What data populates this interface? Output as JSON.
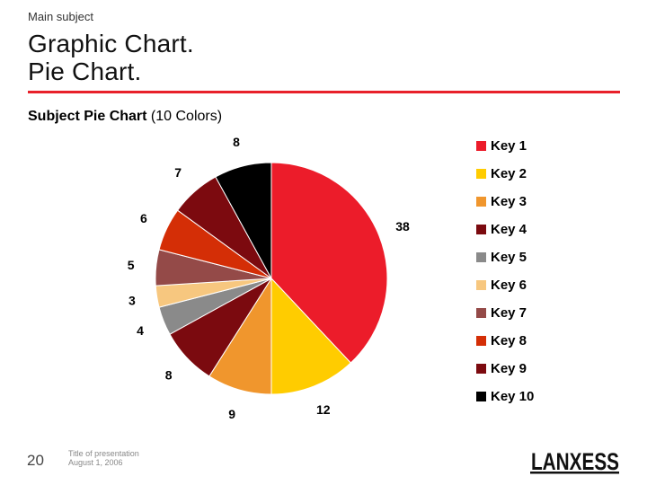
{
  "header": {
    "kicker": "Main subject",
    "title_line1": "Graphic Chart.",
    "title_line2": "Pie Chart.",
    "subtitle_bold": "Subject Pie Chart",
    "subtitle_rest": " (10 Colors)"
  },
  "footer": {
    "page_number": "20",
    "presentation_title": "Title of presentation",
    "date": "August 1, 2006",
    "logo_text": "LANXESS"
  },
  "colors": {
    "accent": "#e8202a",
    "logo": "#111111"
  },
  "chart_data": {
    "type": "pie",
    "legend_position": "right",
    "slices": [
      {
        "label": "Key 1",
        "value": 38,
        "color": "#ec1c2a"
      },
      {
        "label": "Key 2",
        "value": 12,
        "color": "#ffcc00"
      },
      {
        "label": "Key 3",
        "value": 9,
        "color": "#f0962d"
      },
      {
        "label": "Key 4",
        "value": 8,
        "color": "#7b0a0f"
      },
      {
        "label": "Key 5",
        "value": 4,
        "color": "#8a8a8a"
      },
      {
        "label": "Key 6",
        "value": 3,
        "color": "#f7c77f"
      },
      {
        "label": "Key 7",
        "value": 5,
        "color": "#944a48"
      },
      {
        "label": "Key 8",
        "value": 6,
        "color": "#d42e06"
      },
      {
        "label": "Key 9",
        "value": 7,
        "color": "#7c0a0f"
      },
      {
        "label": "Key 10",
        "value": 8,
        "color": "#000000"
      }
    ]
  }
}
